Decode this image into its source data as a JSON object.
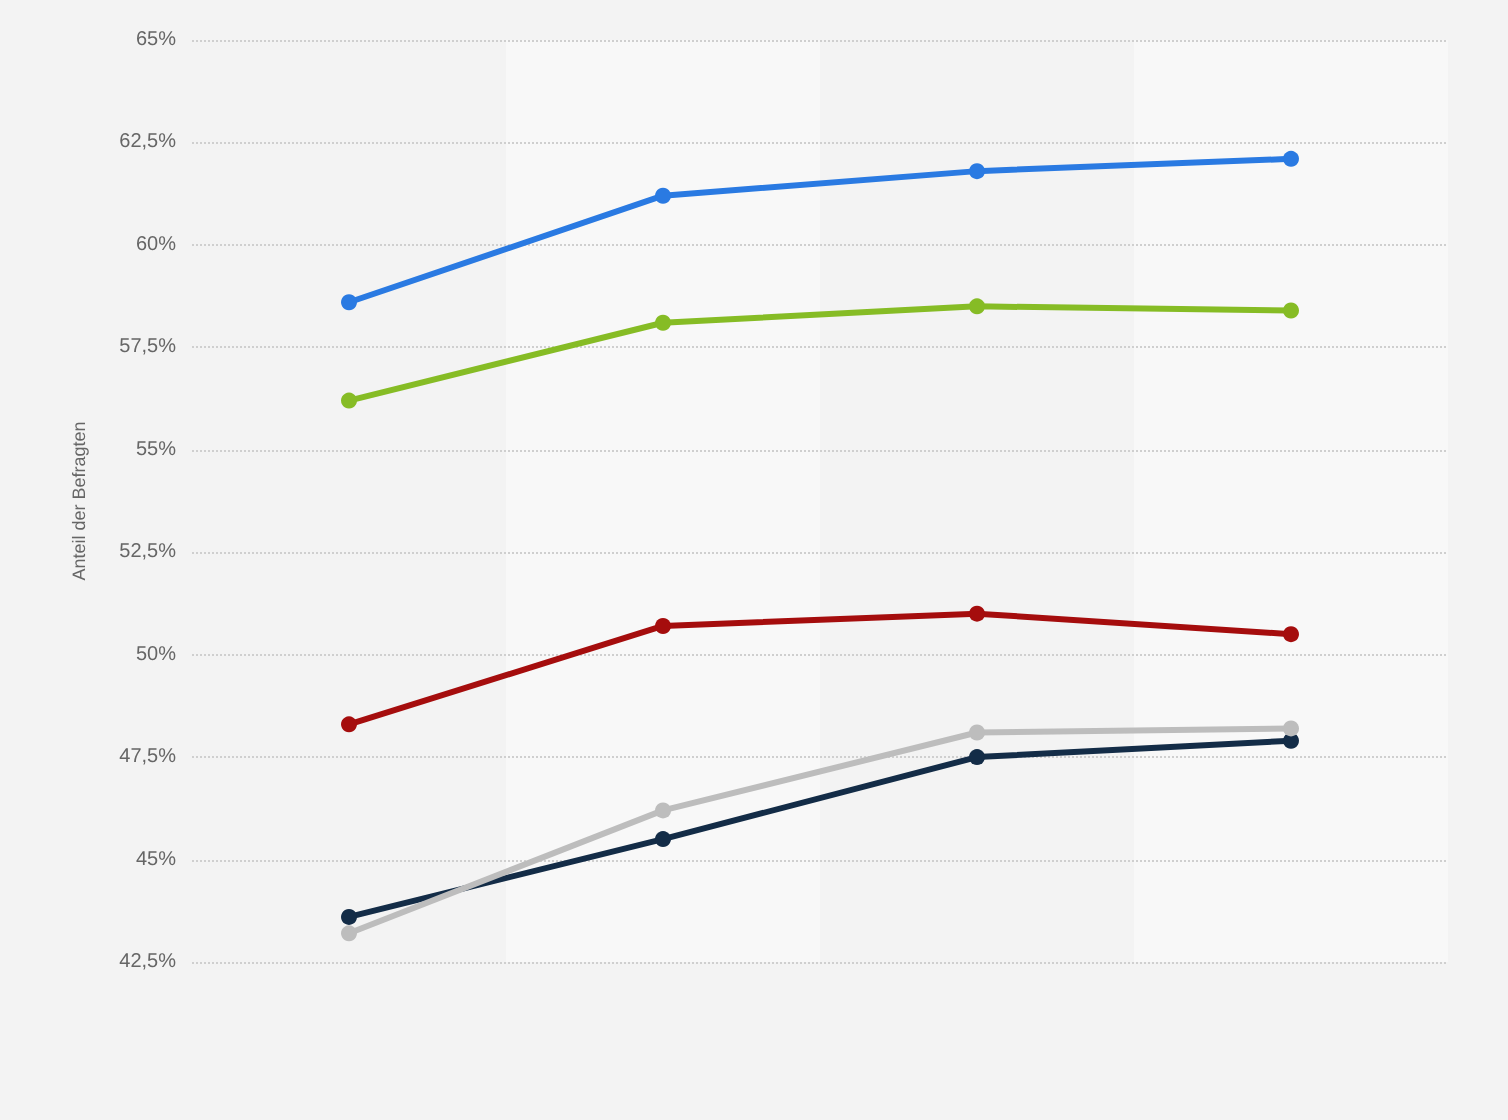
{
  "chart_data": {
    "type": "line",
    "ylabel": "Anteil der Befragten",
    "categories": [
      null,
      null,
      null,
      null
    ],
    "series": [
      {
        "color": "#2a7ae2",
        "values": [
          58.6,
          61.2,
          61.8,
          62.1
        ]
      },
      {
        "color": "#86bc25",
        "values": [
          56.2,
          58.1,
          58.5,
          58.4
        ]
      },
      {
        "color": "#a50d0d",
        "values": [
          48.3,
          50.7,
          51.0,
          50.5
        ]
      },
      {
        "color": "#132c47",
        "values": [
          43.6,
          45.5,
          47.5,
          47.9
        ]
      },
      {
        "color": "#bdbdbd",
        "values": [
          43.2,
          46.2,
          48.1,
          48.2
        ]
      }
    ],
    "ylim": [
      42.5,
      65
    ],
    "yticks": [
      {
        "value": 42.5,
        "label": "42,5%"
      },
      {
        "value": 45,
        "label": "45%"
      },
      {
        "value": 47.5,
        "label": "47,5%"
      },
      {
        "value": 50,
        "label": "50%"
      },
      {
        "value": 52.5,
        "label": "52,5%"
      },
      {
        "value": 55,
        "label": "55%"
      },
      {
        "value": 57.5,
        "label": "57,5%"
      },
      {
        "value": 60,
        "label": "60%"
      },
      {
        "value": 62.5,
        "label": "62,5%"
      },
      {
        "value": 65,
        "label": "65%"
      }
    ],
    "grid": "y",
    "marker": "circle",
    "line_style": "solid"
  }
}
